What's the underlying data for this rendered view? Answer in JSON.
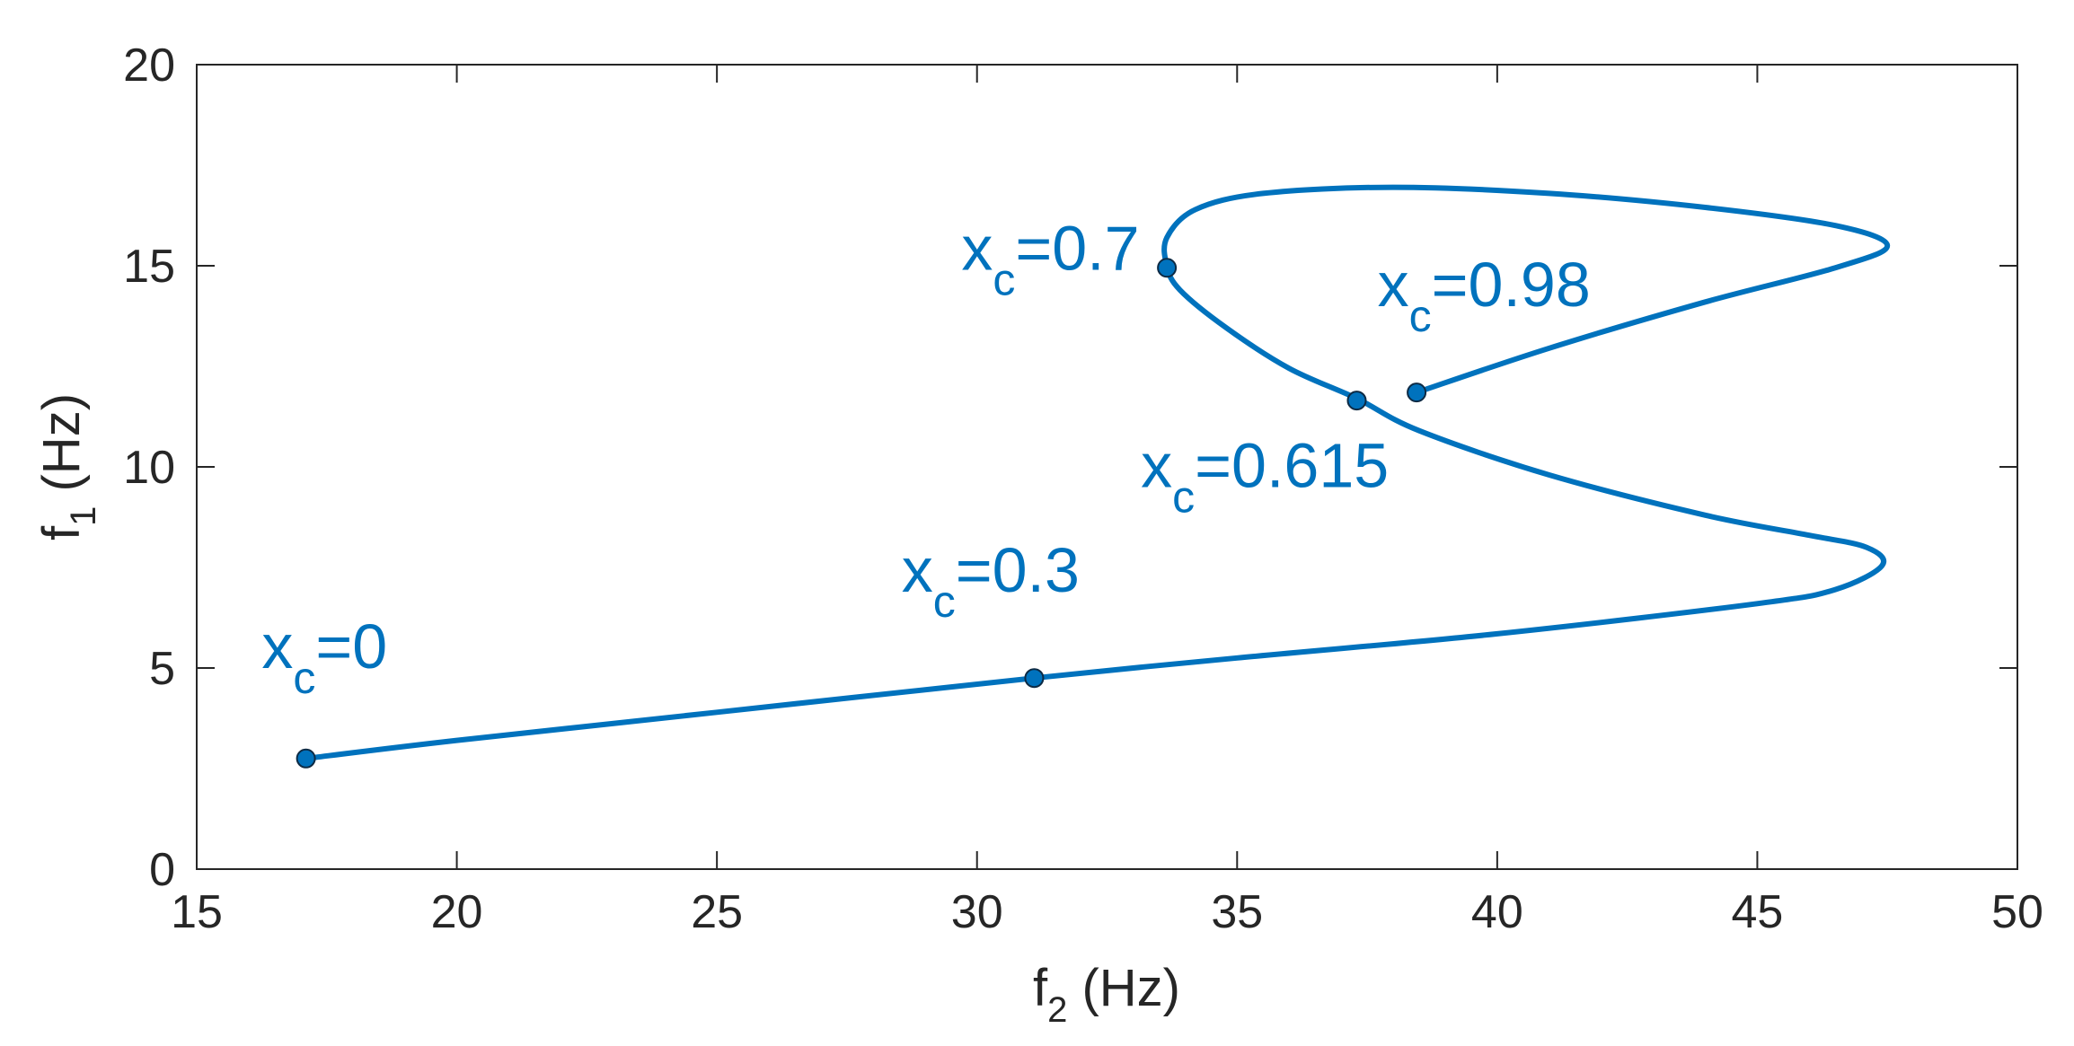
{
  "chart_data": {
    "type": "line",
    "xlabel": {
      "main": "f",
      "sub": "2",
      "unit": " (Hz)"
    },
    "ylabel": {
      "main": "f",
      "sub": "1",
      "unit": " (Hz)"
    },
    "xlim": [
      15,
      50
    ],
    "ylim": [
      0,
      20
    ],
    "xticks": [
      15,
      20,
      25,
      30,
      35,
      40,
      45,
      50
    ],
    "yticks": [
      0,
      5,
      10,
      15,
      20
    ],
    "grid": false,
    "line_color": "#0072BD",
    "series": [
      {
        "curve": [
          [
            17.1,
            2.75
          ],
          [
            20.0,
            3.2
          ],
          [
            25.0,
            3.9
          ],
          [
            31.1,
            4.75
          ],
          [
            35.0,
            5.25
          ],
          [
            40.0,
            5.85
          ],
          [
            45.0,
            6.6
          ],
          [
            46.5,
            6.95
          ],
          [
            47.4,
            7.55
          ],
          [
            47.1,
            8.0
          ],
          [
            46.0,
            8.3
          ],
          [
            44.0,
            8.8
          ],
          [
            41.0,
            9.8
          ],
          [
            38.5,
            10.9
          ],
          [
            37.3,
            11.7
          ],
          [
            36.0,
            12.45
          ],
          [
            34.8,
            13.45
          ],
          [
            33.9,
            14.4
          ],
          [
            33.65,
            15.0
          ],
          [
            33.65,
            15.7
          ],
          [
            34.2,
            16.4
          ],
          [
            35.5,
            16.8
          ],
          [
            38.0,
            16.95
          ],
          [
            41.0,
            16.8
          ],
          [
            44.0,
            16.45
          ],
          [
            46.5,
            16.0
          ],
          [
            47.5,
            15.5
          ],
          [
            46.5,
            14.95
          ],
          [
            44.0,
            14.1
          ],
          [
            41.0,
            12.95
          ],
          [
            38.45,
            11.85
          ]
        ]
      }
    ],
    "markers": [
      {
        "x": 17.1,
        "y": 2.75
      },
      {
        "x": 31.1,
        "y": 4.75
      },
      {
        "x": 33.65,
        "y": 14.95
      },
      {
        "x": 37.3,
        "y": 11.65
      },
      {
        "x": 38.45,
        "y": 11.85
      }
    ],
    "annotations": [
      {
        "main": "x",
        "sub": "c",
        "value": "=0",
        "x": 16.25,
        "y": 5.0
      },
      {
        "main": "x",
        "sub": "c",
        "value": "=0.3",
        "x": 28.55,
        "y": 6.9
      },
      {
        "main": "x",
        "sub": "c",
        "value": "=0.7",
        "x": 29.7,
        "y": 14.9
      },
      {
        "main": "x",
        "sub": "c",
        "value": "=0.615",
        "x": 33.15,
        "y": 9.5
      },
      {
        "main": "x",
        "sub": "c",
        "value": "=0.98",
        "x": 37.7,
        "y": 14.0
      }
    ]
  }
}
